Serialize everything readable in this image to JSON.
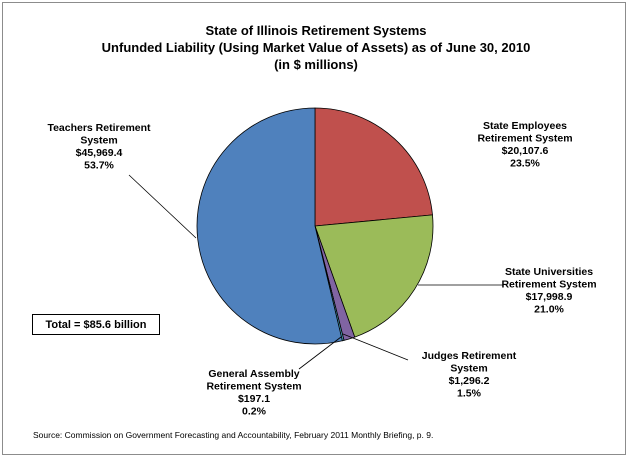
{
  "chart_data": {
    "type": "pie",
    "title": [
      "State of Illinois Retirement Systems",
      "Unfunded Liability (Using Market Value of Assets) as of June 30, 2010",
      "(in $ millions)"
    ],
    "slices": [
      {
        "name_lines": [
          "State Employees",
          "Retirement System"
        ],
        "value_label": "$20,107.6",
        "value": 20107.6,
        "pct_label": "23.5%",
        "pct": 23.5,
        "color": "#c0504d"
      },
      {
        "name_lines": [
          "State Universities",
          "Retirement System"
        ],
        "value_label": "$17,998.9",
        "value": 17998.9,
        "pct_label": "21.0%",
        "pct": 21.0,
        "color": "#9bbb59"
      },
      {
        "name_lines": [
          "Judges Retirement",
          "System"
        ],
        "value_label": "$1,296.2",
        "value": 1296.2,
        "pct_label": "1.5%",
        "pct": 1.5,
        "color": "#8064a2"
      },
      {
        "name_lines": [
          "General Assembly",
          "Retirement System"
        ],
        "value_label": "$197.1",
        "value": 197.1,
        "pct_label": "0.2%",
        "pct": 0.2,
        "color": "#4bacc6"
      },
      {
        "name_lines": [
          "Teachers Retirement",
          "System"
        ],
        "value_label": "$45,969.4",
        "value": 45969.4,
        "pct_label": "53.7%",
        "pct": 53.7,
        "color": "#4f81bd"
      }
    ],
    "total_label": "Total = $85.6 billion",
    "source": "Source: Commission on Government Forecasting and Accountability, February 2011 Monthly Briefing, p. 9."
  }
}
